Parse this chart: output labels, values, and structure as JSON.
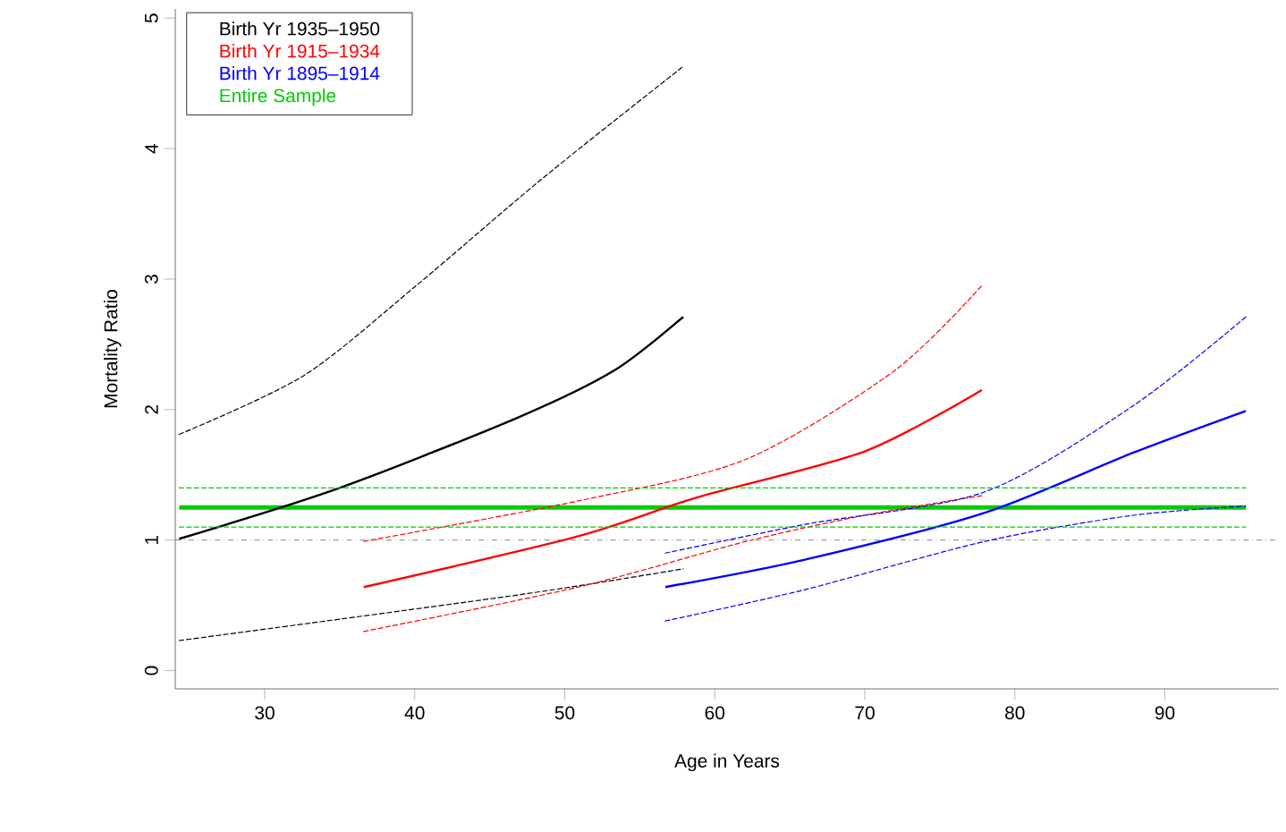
{
  "chart_data": {
    "type": "line",
    "xlabel": "Age in Years",
    "ylabel": "Mortality Ratio",
    "xlim": [
      24.04,
      97.6
    ],
    "ylim": [
      -0.14,
      5.07
    ],
    "xticks": [
      30,
      40,
      50,
      60,
      70,
      80,
      90
    ],
    "yticks": [
      0,
      1,
      2,
      3,
      4,
      5
    ],
    "grid": false,
    "legend": "top left",
    "marker": "none",
    "series": [
      {
        "name": "Birth Yr 1935–1950",
        "color": "#000000",
        "line_style": "solid",
        "x": [
          24.3,
          35,
          46.9,
          53.3,
          57.9
        ],
        "values": [
          1.01,
          1.4,
          1.94,
          2.3,
          2.71
        ]
      },
      {
        "name": "Birth Yr 1915–1934",
        "color": "#ff0000",
        "line_style": "solid",
        "x": [
          36.6,
          50.9,
          58.9,
          70,
          77.8
        ],
        "values": [
          0.64,
          1.03,
          1.33,
          1.68,
          2.15
        ]
      },
      {
        "name": "Birth Yr 1895–1914",
        "color": "#0000ff",
        "line_style": "solid",
        "x": [
          56.7,
          66,
          78,
          87.9,
          95.4
        ],
        "values": [
          0.64,
          0.85,
          1.21,
          1.67,
          1.99
        ]
      },
      {
        "name": "Entire Sample",
        "color": "#00cc00",
        "line_style": "solid",
        "x": [
          24.3,
          95.4
        ],
        "values": [
          1.25,
          1.25
        ]
      },
      {
        "color": "#000000",
        "line_style": "dashed",
        "x": [
          24.3,
          32.6,
          40.1,
          48.5,
          57.9
        ],
        "values": [
          1.81,
          2.26,
          2.95,
          3.77,
          4.63
        ]
      },
      {
        "color": "#000000",
        "line_style": "dashed",
        "x": [
          24.3,
          46.9,
          57.9
        ],
        "values": [
          0.23,
          0.58,
          0.78
        ]
      },
      {
        "color": "#ff0000",
        "line_style": "dashed",
        "x": [
          36.6,
          50.9,
          62.1,
          72,
          77.8
        ],
        "values": [
          0.99,
          1.3,
          1.62,
          2.3,
          2.95
        ]
      },
      {
        "color": "#ff0000",
        "line_style": "dashed",
        "x": [
          36.6,
          50.9,
          62.1,
          70,
          77.8
        ],
        "values": [
          0.3,
          0.64,
          0.99,
          1.19,
          1.34
        ]
      },
      {
        "color": "#0000ff",
        "line_style": "dashed",
        "x": [
          56.7,
          66,
          78,
          87.9,
          95.4
        ],
        "values": [
          0.9,
          1.12,
          1.37,
          2.03,
          2.71
        ]
      },
      {
        "color": "#0000ff",
        "line_style": "dashed",
        "x": [
          56.7,
          66,
          78,
          87.9,
          95.4
        ],
        "values": [
          0.38,
          0.62,
          0.99,
          1.19,
          1.26
        ]
      },
      {
        "color": "#00cc00",
        "line_style": "dashed",
        "x": [
          24.3,
          95.4
        ],
        "values": [
          1.4,
          1.4
        ]
      },
      {
        "color": "#00cc00",
        "line_style": "dashed",
        "x": [
          24.3,
          95.4
        ],
        "values": [
          1.1,
          1.1
        ]
      }
    ],
    "ref_lines": [
      {
        "axis": "y",
        "value": 1,
        "color": "#666666",
        "line_style": "dashdot"
      }
    ]
  }
}
